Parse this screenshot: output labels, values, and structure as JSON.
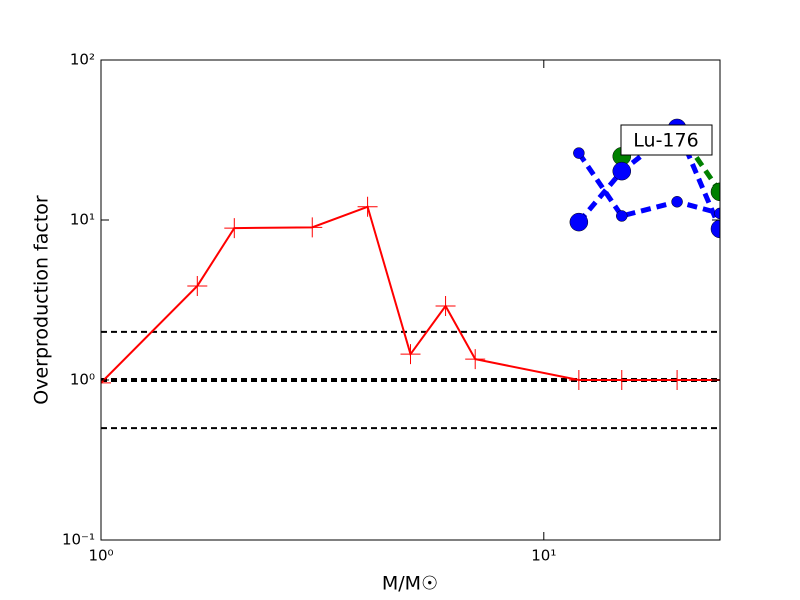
{
  "chart_data": {
    "type": "line",
    "xlabel": "M/M☉",
    "ylabel": "Overproduction factor",
    "annotation": "Lu-176",
    "xscale": "log",
    "yscale": "log",
    "xlim": [
      1,
      25
    ],
    "ylim": [
      0.1,
      100
    ],
    "xticks": [
      {
        "value": 1,
        "label": "10⁰"
      },
      {
        "value": 10,
        "label": "10¹"
      }
    ],
    "yticks": [
      {
        "value": 0.1,
        "label": "10⁻¹"
      },
      {
        "value": 1,
        "label": "10⁰"
      },
      {
        "value": 10,
        "label": "10¹"
      },
      {
        "value": 100,
        "label": "10²"
      }
    ],
    "hlines": [
      {
        "value": 2,
        "width": 2
      },
      {
        "value": 1,
        "width": 4
      },
      {
        "value": 0.5,
        "width": 2
      }
    ],
    "series": [
      {
        "color": "#ff0000",
        "marker": "plus",
        "dashed": false,
        "x": [
          1,
          1.65,
          2,
          3,
          4,
          5,
          6,
          7,
          12,
          15,
          20,
          25
        ],
        "values": [
          0.96,
          3.87,
          8.9,
          9.0,
          12.1,
          1.45,
          2.9,
          1.35,
          1.0,
          1.0,
          1.0,
          1.0
        ]
      },
      {
        "color": "#008000",
        "marker": "circle",
        "dashed": true,
        "x": [
          15,
          20,
          25
        ],
        "values": [
          25,
          37,
          15
        ]
      },
      {
        "color": "#0000ff",
        "marker": "circle",
        "dashed": true,
        "x": [
          12,
          15,
          20,
          25
        ],
        "values": [
          9.7,
          20.2,
          37.6,
          8.8
        ]
      },
      {
        "color": "#0000ff",
        "marker": "smallcircle",
        "dashed": true,
        "x": [
          12,
          15,
          20,
          25
        ],
        "values": [
          26.2,
          10.6,
          13,
          11
        ]
      }
    ]
  }
}
